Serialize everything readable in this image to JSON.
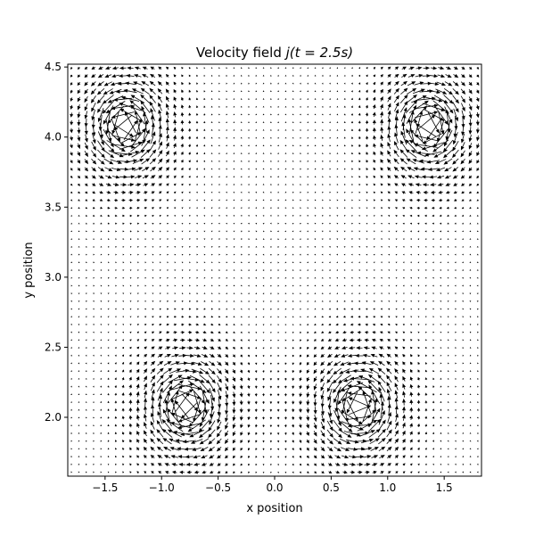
{
  "chart_data": {
    "type": "quiver",
    "title_prefix": "Velocity field ",
    "title_math": "j(t = 2.5s)",
    "xlabel": "x position",
    "ylabel": "y position",
    "xlim": [
      -1.83,
      1.83
    ],
    "ylim": [
      1.58,
      4.52
    ],
    "x_ticks": [
      -1.5,
      -1.0,
      -0.5,
      0.0,
      0.5,
      1.0,
      1.5
    ],
    "x_tick_labels": [
      "−1.5",
      "−1.0",
      "−0.5",
      "0.0",
      "0.5",
      "1.0",
      "1.5"
    ],
    "y_ticks": [
      2.0,
      2.5,
      3.0,
      3.5,
      4.0,
      4.5
    ],
    "y_tick_labels": [
      "2.0",
      "2.5",
      "3.0",
      "3.5",
      "4.0",
      "4.5"
    ],
    "grid": false,
    "legend": "none",
    "arrow_color": "#000000",
    "vortices": [
      {
        "x": -1.32,
        "y": 4.08,
        "circulation": 1
      },
      {
        "x": 1.36,
        "y": 4.08,
        "circulation": -1
      },
      {
        "x": -0.78,
        "y": 2.08,
        "circulation": -1
      },
      {
        "x": 0.74,
        "y": 2.08,
        "circulation": 1
      }
    ]
  }
}
